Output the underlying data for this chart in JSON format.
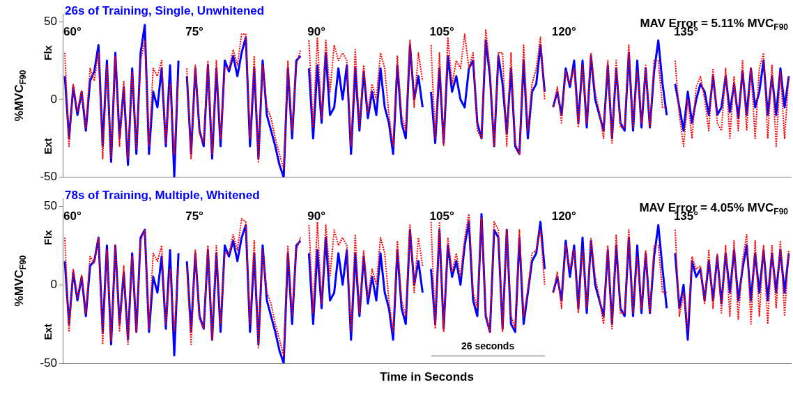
{
  "chart_data": [
    {
      "type": "line",
      "title": "26s of Training, Single, Unwhitened",
      "subtitle": "MAV Error = 5.11% MVC$_{F90}$",
      "ylabel": "%MVC$_{F90}$",
      "annotations": [
        "60°",
        "75°",
        "90°",
        "105°",
        "120°",
        "135°",
        "Flx",
        "Ext"
      ],
      "categories": [
        null,
        null,
        null,
        null,
        null,
        null,
        null,
        null,
        null,
        null,
        null,
        null,
        null,
        null,
        null,
        null,
        null,
        null,
        null,
        null,
        null,
        null,
        null,
        null,
        null,
        null,
        null,
        null,
        null,
        null,
        null,
        null,
        null,
        null,
        null,
        null,
        null,
        null,
        null,
        null,
        null,
        null,
        null,
        null,
        null,
        null,
        null,
        null,
        null,
        null,
        null,
        null,
        null,
        null,
        null,
        null,
        null,
        null,
        null,
        null,
        null,
        null,
        null,
        null,
        null,
        null,
        null,
        null,
        null,
        null,
        null,
        null,
        null,
        null,
        null,
        null,
        null,
        null,
        null,
        null,
        null,
        null,
        null,
        null,
        null,
        null,
        null,
        null,
        null,
        null,
        null,
        null,
        null,
        null,
        null,
        null,
        null,
        null,
        null,
        null,
        null,
        null,
        null,
        null,
        null,
        null,
        null,
        null,
        null,
        null,
        null,
        null,
        null,
        null,
        null,
        null,
        null,
        null,
        null,
        null,
        null,
        null,
        null,
        null,
        null,
        null,
        null,
        null,
        null,
        null,
        null,
        null,
        null,
        null,
        null,
        null,
        null,
        null,
        null,
        null,
        null,
        null,
        null,
        null,
        null,
        null,
        null,
        null,
        null,
        null,
        null,
        null,
        null,
        null,
        null,
        null,
        null,
        null,
        null,
        null,
        null,
        null,
        null,
        null,
        null,
        null,
        null,
        null,
        null,
        null,
        null,
        null,
        null
      ],
      "series": [
        {
          "color": "#ff0000",
          "line_style": "dotted",
          "values": [
            30,
            -30,
            10,
            -8,
            6,
            -18,
            20,
            12,
            30,
            -38,
            22,
            -38,
            28,
            -30,
            12,
            -38,
            18,
            -32,
            25,
            38,
            -30,
            20,
            15,
            25,
            -28,
            10,
            -35,
            15,
            null,
            20,
            -38,
            22,
            -22,
            -28,
            25,
            -35,
            25,
            -25,
            20,
            20,
            32,
            22,
            42,
            42,
            -25,
            28,
            -40,
            22,
            -5,
            -12,
            -25,
            -35,
            -45,
            25,
            -20,
            22,
            32,
            null,
            38,
            -18,
            40,
            -12,
            38,
            5,
            35,
            25,
            30,
            25,
            -30,
            32,
            -18,
            22,
            -8,
            10,
            0,
            30,
            20,
            -10,
            -30,
            28,
            -10,
            -20,
            38,
            -5,
            30,
            12,
            null,
            35,
            -25,
            30,
            -30,
            40,
            10,
            25,
            20,
            42,
            20,
            30,
            -20,
            -25,
            45,
            20,
            -30,
            30,
            30,
            -30,
            30,
            -28,
            -35,
            35,
            -20,
            10,
            20,
            40,
            0,
            null,
            -5,
            8,
            -15,
            18,
            10,
            20,
            -18,
            22,
            -15,
            30,
            5,
            -8,
            -25,
            25,
            -28,
            25,
            -18,
            -18,
            35,
            -18,
            18,
            -15,
            22,
            -18,
            25,
            25,
            -5,
            -5,
            null,
            25,
            -10,
            -30,
            0,
            -25,
            8,
            15,
            0,
            -20,
            20,
            -15,
            -20,
            20,
            -25,
            15,
            -20,
            25,
            -20,
            20,
            -25,
            20,
            30,
            -25,
            22,
            -30,
            18,
            -25,
            15
          ]
        },
        {
          "color": "#0000ff",
          "line_style": "solid",
          "values": [
            15,
            -25,
            8,
            -10,
            5,
            -20,
            12,
            18,
            35,
            -30,
            25,
            -40,
            30,
            -25,
            8,
            -42,
            20,
            -35,
            30,
            48,
            -35,
            5,
            -5,
            20,
            -30,
            22,
            -50,
            25,
            null,
            15,
            -35,
            20,
            -20,
            -30,
            22,
            -38,
            20,
            -30,
            25,
            18,
            28,
            15,
            30,
            40,
            -30,
            20,
            -38,
            25,
            -10,
            -20,
            -30,
            -42,
            -50,
            20,
            -25,
            25,
            28,
            null,
            20,
            -25,
            22,
            -15,
            30,
            -10,
            -5,
            20,
            0,
            22,
            -35,
            20,
            -20,
            18,
            -12,
            5,
            -10,
            20,
            -5,
            -15,
            -35,
            22,
            -15,
            -25,
            35,
            0,
            15,
            -5,
            null,
            5,
            -28,
            20,
            -28,
            28,
            5,
            15,
            0,
            -5,
            20,
            25,
            -15,
            -25,
            38,
            15,
            -30,
            28,
            10,
            -22,
            20,
            -30,
            -35,
            25,
            -25,
            5,
            10,
            35,
            5,
            null,
            -5,
            5,
            -10,
            20,
            8,
            25,
            -15,
            25,
            -18,
            28,
            0,
            -10,
            -20,
            22,
            -25,
            20,
            -15,
            -20,
            30,
            -20,
            25,
            -18,
            20,
            -18,
            18,
            38,
            10,
            -10,
            null,
            10,
            -5,
            -20,
            5,
            -15,
            0,
            10,
            5,
            -10,
            15,
            -10,
            -5,
            15,
            -8,
            10,
            -12,
            18,
            -10,
            20,
            -5,
            5,
            25,
            -10,
            15,
            -10,
            20,
            -5,
            15
          ]
        }
      ],
      "ylim": [
        -50,
        55
      ],
      "yticks": [
        -50,
        0,
        50
      ],
      "grid": false,
      "legend": false,
      "marker": "none",
      "tick_labels": "y"
    },
    {
      "type": "line",
      "title": "78s of Training, Multiple, Whitened",
      "subtitle": "MAV Error = 4.05% MVC$_{F90}$",
      "ylabel": "%MVC$_{F90}$",
      "xlabel": "Time in Seconds",
      "annotations": [
        "60°",
        "75°",
        "90°",
        "105°",
        "120°",
        "135°",
        "Flx",
        "Ext",
        "26 seconds"
      ],
      "categories": [
        null,
        null,
        null,
        null,
        null,
        null,
        null,
        null,
        null,
        null,
        null,
        null,
        null,
        null,
        null,
        null,
        null,
        null,
        null,
        null,
        null,
        null,
        null,
        null,
        null,
        null,
        null,
        null,
        null,
        null,
        null,
        null,
        null,
        null,
        null,
        null,
        null,
        null,
        null,
        null,
        null,
        null,
        null,
        null,
        null,
        null,
        null,
        null,
        null,
        null,
        null,
        null,
        null,
        null,
        null,
        null,
        null,
        null,
        null,
        null,
        null,
        null,
        null,
        null,
        null,
        null,
        null,
        null,
        null,
        null,
        null,
        null,
        null,
        null,
        null,
        null,
        null,
        null,
        null,
        null,
        null,
        null,
        null,
        null,
        null,
        null,
        null,
        null,
        null,
        null,
        null,
        null,
        null,
        null,
        null,
        null,
        null,
        null,
        null,
        null,
        null,
        null,
        null,
        null,
        null,
        null,
        null,
        null,
        null,
        null,
        null,
        null,
        null,
        null,
        null,
        null,
        null,
        null,
        null,
        null,
        null,
        null,
        null,
        null,
        null,
        null,
        null,
        null,
        null,
        null,
        null,
        null,
        null,
        null,
        null,
        null,
        null,
        null,
        null,
        null,
        null,
        null,
        null,
        null,
        null,
        null,
        null,
        null,
        null,
        null,
        null,
        null,
        null,
        null,
        null,
        null,
        null,
        null,
        null,
        null,
        null,
        null,
        null,
        null,
        null,
        null,
        null,
        null,
        null,
        null,
        null,
        null,
        null
      ],
      "series": [
        {
          "color": "#ff0000",
          "line_style": "dotted",
          "values": [
            30,
            -30,
            10,
            -8,
            6,
            -18,
            18,
            14,
            30,
            -38,
            22,
            -36,
            25,
            -30,
            12,
            -38,
            18,
            -30,
            28,
            35,
            -28,
            20,
            15,
            25,
            -26,
            10,
            -30,
            12,
            null,
            12,
            -38,
            22,
            -22,
            -28,
            25,
            -35,
            25,
            -25,
            20,
            20,
            32,
            22,
            42,
            40,
            -25,
            28,
            -40,
            22,
            -5,
            -12,
            -25,
            -35,
            -45,
            25,
            -20,
            22,
            30,
            null,
            38,
            -18,
            40,
            -12,
            38,
            5,
            35,
            25,
            30,
            25,
            -30,
            32,
            -18,
            22,
            -8,
            10,
            0,
            30,
            20,
            -10,
            -30,
            28,
            -10,
            -20,
            38,
            -5,
            30,
            12,
            null,
            40,
            -28,
            40,
            -30,
            30,
            8,
            20,
            5,
            30,
            45,
            -5,
            -15,
            42,
            -18,
            -30,
            40,
            35,
            -30,
            35,
            -20,
            -28,
            35,
            -20,
            -3,
            20,
            22,
            35,
            0,
            null,
            -5,
            8,
            -15,
            25,
            10,
            22,
            -18,
            22,
            -15,
            30,
            5,
            -8,
            -25,
            25,
            -28,
            32,
            -18,
            -18,
            35,
            -18,
            18,
            -15,
            22,
            -18,
            25,
            25,
            -5,
            -5,
            null,
            35,
            -20,
            -5,
            -28,
            18,
            10,
            12,
            -12,
            22,
            -15,
            20,
            -18,
            25,
            -20,
            28,
            -22,
            15,
            32,
            -25,
            28,
            -20,
            25,
            -25,
            25,
            -15,
            28,
            -20,
            22
          ]
        },
        {
          "color": "#0000ff",
          "line_style": "solid",
          "values": [
            15,
            -25,
            8,
            -10,
            5,
            -20,
            12,
            15,
            30,
            -30,
            25,
            -38,
            25,
            -25,
            8,
            -35,
            20,
            -30,
            30,
            35,
            -30,
            5,
            -5,
            18,
            -28,
            22,
            -45,
            20,
            null,
            15,
            -30,
            20,
            -20,
            -28,
            22,
            -35,
            20,
            -30,
            25,
            18,
            28,
            15,
            30,
            38,
            -30,
            20,
            -38,
            25,
            -10,
            -20,
            -30,
            -42,
            -50,
            20,
            -25,
            25,
            28,
            null,
            20,
            -25,
            22,
            -15,
            30,
            -10,
            -5,
            20,
            0,
            22,
            -35,
            20,
            -20,
            18,
            -12,
            5,
            -10,
            20,
            -5,
            -15,
            -35,
            22,
            -15,
            -25,
            35,
            0,
            15,
            -5,
            null,
            10,
            -25,
            35,
            -28,
            25,
            5,
            15,
            0,
            25,
            40,
            -10,
            -20,
            45,
            -20,
            -30,
            35,
            30,
            -28,
            35,
            -25,
            -30,
            30,
            -25,
            -5,
            15,
            20,
            40,
            10,
            null,
            -5,
            5,
            -10,
            28,
            5,
            25,
            -15,
            30,
            -18,
            28,
            0,
            -10,
            -20,
            22,
            -25,
            25,
            -15,
            -20,
            30,
            -20,
            25,
            -18,
            20,
            -18,
            18,
            38,
            10,
            -15,
            null,
            20,
            -15,
            0,
            -35,
            15,
            5,
            10,
            -10,
            15,
            -10,
            18,
            -12,
            20,
            -5,
            22,
            -10,
            10,
            25,
            -10,
            20,
            -5,
            22,
            -10,
            20,
            -5,
            22,
            -5,
            20
          ]
        }
      ],
      "ylim": [
        -50,
        55
      ],
      "yticks": [
        -50,
        0,
        50
      ],
      "grid": false,
      "legend": false,
      "marker": "none",
      "tick_labels": "y"
    }
  ]
}
